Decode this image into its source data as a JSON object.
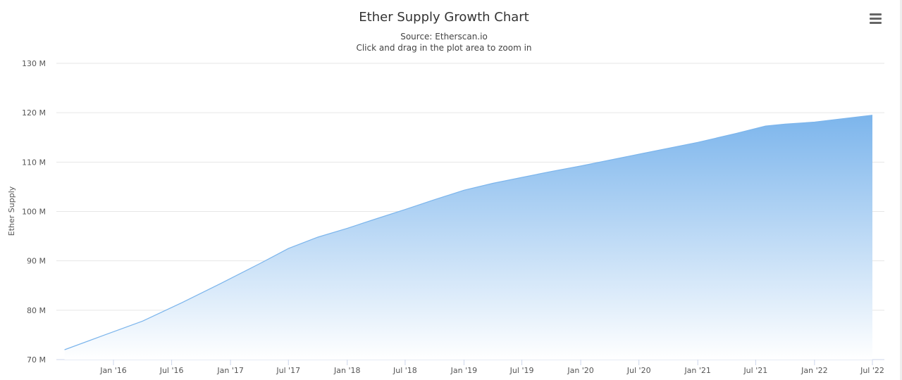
{
  "chart_data": {
    "type": "area",
    "title": "Ether Supply Growth Chart",
    "subtitle": [
      "Source: Etherscan.io",
      "Click and drag in the plot area to zoom in"
    ],
    "ylabel": "Ether Supply",
    "xlabel": "",
    "ylim": [
      70,
      130
    ],
    "y_unit": "M",
    "y_ticks": [
      70,
      80,
      90,
      100,
      110,
      120,
      130
    ],
    "y_tick_labels": [
      "70 M",
      "80 M",
      "90 M",
      "100 M",
      "110 M",
      "120 M",
      "130 M"
    ],
    "x_tick_labels": [
      "Jan '16",
      "Jul '16",
      "Jan '17",
      "Jul '17",
      "Jan '18",
      "Jul '18",
      "Jan '19",
      "Jul '19",
      "Jan '20",
      "Jul '20",
      "Jan '21",
      "Jul '21",
      "Jan '22",
      "Jul '22"
    ],
    "x_ticks": [
      "2016-01-01",
      "2016-07-01",
      "2017-01-01",
      "2017-07-01",
      "2018-01-01",
      "2018-07-01",
      "2019-01-01",
      "2019-07-01",
      "2020-01-01",
      "2020-07-01",
      "2021-01-01",
      "2021-07-01",
      "2022-01-01",
      "2022-07-01"
    ],
    "grid": true,
    "legend": "none",
    "series": [
      {
        "color": "#7cb5ec",
        "x": [
          "2015-08-01",
          "2015-12-01",
          "2016-04-01",
          "2016-08-01",
          "2016-12-01",
          "2017-04-01",
          "2017-07-01",
          "2017-10-01",
          "2018-01-01",
          "2018-04-01",
          "2018-07-01",
          "2018-10-01",
          "2019-01-01",
          "2019-04-01",
          "2019-07-01",
          "2019-10-01",
          "2020-01-01",
          "2020-07-01",
          "2021-01-01",
          "2021-05-01",
          "2021-08-01",
          "2021-10-01",
          "2022-01-01",
          "2022-04-01",
          "2022-07-01"
        ],
        "values": [
          72.0,
          74.9,
          77.8,
          81.5,
          85.4,
          89.4,
          92.5,
          94.8,
          96.6,
          98.5,
          100.4,
          102.4,
          104.3,
          105.7,
          106.9,
          108.1,
          109.2,
          111.6,
          114.0,
          115.8,
          117.3,
          117.7,
          118.1,
          118.8,
          119.5
        ]
      }
    ]
  },
  "colors": {
    "area_top": "#7cb5ec",
    "area_bottom": "#ffffff",
    "line": "#7cb5ec",
    "grid": "#e6e6e6"
  },
  "icons": {
    "menu": "hamburger-menu-icon"
  }
}
